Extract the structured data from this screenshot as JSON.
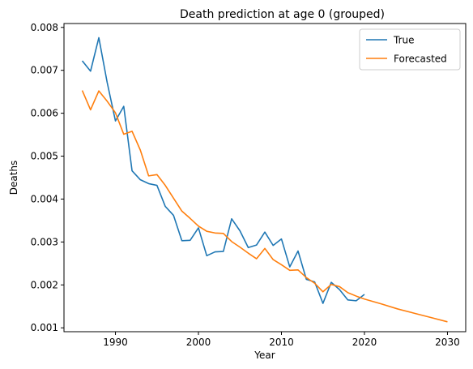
{
  "chart_data": {
    "type": "line",
    "title": "Death prediction at age 0 (grouped)",
    "xlabel": "Year",
    "ylabel": "Deaths",
    "xlim": [
      1983.8,
      2032.2
    ],
    "ylim": [
      0.00091,
      0.00809
    ],
    "xticks": [
      1990,
      2000,
      2010,
      2020,
      2030
    ],
    "yticks": [
      0.001,
      0.002,
      0.003,
      0.004,
      0.005,
      0.006,
      0.007,
      0.008
    ],
    "ytick_labels": [
      "0.001",
      "0.002",
      "0.003",
      "0.004",
      "0.005",
      "0.006",
      "0.007",
      "0.008"
    ],
    "grid": false,
    "legend": "top-right",
    "series": [
      {
        "name": "True",
        "color": "#1f77b4",
        "x": [
          1986,
          1987,
          1988,
          1989,
          1990,
          1991,
          1992,
          1993,
          1994,
          1995,
          1996,
          1997,
          1998,
          1999,
          2000,
          2001,
          2002,
          2003,
          2004,
          2005,
          2006,
          2007,
          2008,
          2009,
          2010,
          2011,
          2012,
          2013,
          2014,
          2015,
          2016,
          2017,
          2018,
          2019,
          2020
        ],
        "y": [
          0.00722,
          0.00698,
          0.00776,
          0.00672,
          0.00582,
          0.00616,
          0.00466,
          0.00445,
          0.00436,
          0.00432,
          0.00383,
          0.00362,
          0.00303,
          0.00304,
          0.00333,
          0.00268,
          0.00277,
          0.00278,
          0.00354,
          0.00326,
          0.00287,
          0.00293,
          0.00323,
          0.00292,
          0.00307,
          0.00242,
          0.00279,
          0.00213,
          0.00207,
          0.00157,
          0.00206,
          0.00189,
          0.00165,
          0.00163,
          0.00178
        ]
      },
      {
        "name": "Forecasted",
        "color": "#ff7f0e",
        "x": [
          1986,
          1987,
          1988,
          1989,
          1990,
          1991,
          1992,
          1993,
          1994,
          1995,
          1996,
          1997,
          1998,
          1999,
          2000,
          2001,
          2002,
          2003,
          2004,
          2005,
          2006,
          2007,
          2008,
          2009,
          2010,
          2011,
          2012,
          2013,
          2014,
          2015,
          2016,
          2017,
          2018,
          2019,
          2020,
          2022,
          2024,
          2026,
          2028,
          2030
        ],
        "y": [
          0.00653,
          0.00608,
          0.00652,
          0.00628,
          0.00601,
          0.00551,
          0.00558,
          0.00514,
          0.00454,
          0.00457,
          0.00432,
          0.00402,
          0.00372,
          0.00355,
          0.00337,
          0.00325,
          0.00321,
          0.0032,
          0.00301,
          0.00288,
          0.00274,
          0.00261,
          0.00285,
          0.00259,
          0.00247,
          0.00234,
          0.00235,
          0.00217,
          0.00204,
          0.00184,
          0.00201,
          0.00196,
          0.00182,
          0.00174,
          0.00167,
          0.00156,
          0.00144,
          0.00134,
          0.00124,
          0.00114
        ]
      }
    ]
  }
}
